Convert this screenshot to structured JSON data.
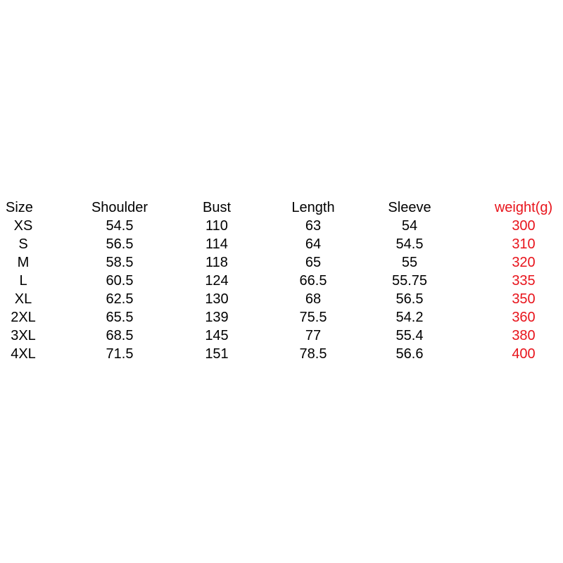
{
  "colors": {
    "text": "#000000",
    "weight_column": "#e8141c",
    "background": "#ffffff"
  },
  "table": {
    "headers": [
      "Size",
      "Shoulder",
      "Bust",
      "Length",
      "Sleeve",
      "weight(g)"
    ],
    "rows": [
      [
        "XS",
        "54.5",
        "110",
        "63",
        "54",
        "300"
      ],
      [
        "S",
        "56.5",
        "114",
        "64",
        "54.5",
        "310"
      ],
      [
        "M",
        "58.5",
        "118",
        "65",
        "55",
        "320"
      ],
      [
        "L",
        "60.5",
        "124",
        "66.5",
        "55.75",
        "335"
      ],
      [
        "XL",
        "62.5",
        "130",
        "68",
        "56.5",
        "350"
      ],
      [
        "2XL",
        "65.5",
        "139",
        "75.5",
        "54.2",
        "360"
      ],
      [
        "3XL",
        "68.5",
        "145",
        "77",
        "55.4",
        "380"
      ],
      [
        "4XL",
        "71.5",
        "151",
        "78.5",
        "56.6",
        "400"
      ]
    ]
  }
}
